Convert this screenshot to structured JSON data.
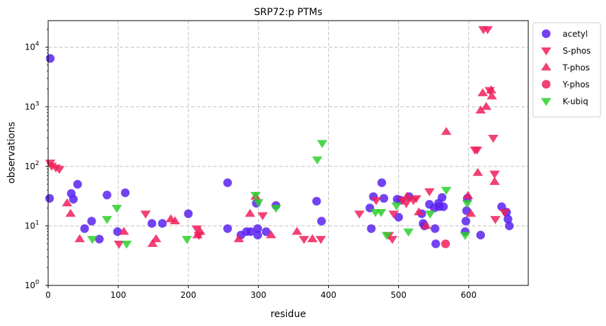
{
  "chart_data": {
    "type": "scatter",
    "title": "SRP72:p PTMs",
    "xlabel": "residue",
    "ylabel": "observations",
    "xlim": [
      0,
      685
    ],
    "ylim": [
      1,
      28000
    ],
    "yscale": "log",
    "grid": true,
    "legend_position": "outside-right-top",
    "x_ticks": [
      "0",
      "100",
      "200",
      "300",
      "400",
      "500",
      "600"
    ],
    "y_ticks": [
      "10^0",
      "10^1",
      "10^2",
      "10^3",
      "10^4"
    ],
    "series": [
      {
        "name": "acetyl",
        "marker": "circle",
        "color": "#5a22f0",
        "points": [
          [
            2,
            29
          ],
          [
            3,
            6500
          ],
          [
            33,
            35
          ],
          [
            36,
            28
          ],
          [
            42,
            50
          ],
          [
            52,
            9
          ],
          [
            62,
            12
          ],
          [
            73,
            6
          ],
          [
            84,
            33
          ],
          [
            99,
            8
          ],
          [
            110,
            36
          ],
          [
            148,
            11
          ],
          [
            163,
            11
          ],
          [
            200,
            16
          ],
          [
            256,
            53
          ],
          [
            256,
            9
          ],
          [
            275,
            7
          ],
          [
            283,
            8
          ],
          [
            289,
            8
          ],
          [
            297,
            24
          ],
          [
            299,
            9
          ],
          [
            299,
            7
          ],
          [
            311,
            8
          ],
          [
            325,
            22
          ],
          [
            383,
            26
          ],
          [
            390,
            12
          ],
          [
            459,
            20
          ],
          [
            461,
            9
          ],
          [
            464,
            31
          ],
          [
            476,
            53
          ],
          [
            479,
            29
          ],
          [
            498,
            28
          ],
          [
            500,
            14
          ],
          [
            503,
            27
          ],
          [
            515,
            31
          ],
          [
            533,
            16
          ],
          [
            535,
            11
          ],
          [
            537,
            10
          ],
          [
            544,
            23
          ],
          [
            551,
            20
          ],
          [
            552,
            9
          ],
          [
            553,
            5
          ],
          [
            557,
            24
          ],
          [
            558,
            21
          ],
          [
            562,
            30
          ],
          [
            564,
            21
          ],
          [
            595,
            8
          ],
          [
            596,
            12
          ],
          [
            597,
            18
          ],
          [
            598,
            29
          ],
          [
            617,
            7
          ],
          [
            647,
            21
          ],
          [
            654,
            17
          ],
          [
            656,
            13
          ],
          [
            658,
            10
          ]
        ]
      },
      {
        "name": "S-phos",
        "marker": "triangle-down",
        "color": "#f0205a",
        "points": [
          [
            3,
            115
          ],
          [
            5,
            102
          ],
          [
            11,
            95
          ],
          [
            16,
            90
          ],
          [
            101,
            5
          ],
          [
            139,
            16
          ],
          [
            212,
            9
          ],
          [
            215,
            7
          ],
          [
            306,
            15
          ],
          [
            365,
            6
          ],
          [
            389,
            6
          ],
          [
            444,
            16
          ],
          [
            468,
            27
          ],
          [
            486,
            7
          ],
          [
            491,
            6
          ],
          [
            493,
            16
          ],
          [
            506,
            27
          ],
          [
            511,
            24
          ],
          [
            521,
            27
          ],
          [
            525,
            29
          ],
          [
            544,
            38
          ],
          [
            609,
            190
          ],
          [
            612,
            190
          ],
          [
            621,
            20000
          ],
          [
            627,
            20000
          ],
          [
            630,
            1900
          ],
          [
            635,
            300
          ],
          [
            637,
            75
          ],
          [
            638,
            13
          ],
          [
            651,
            17
          ]
        ]
      },
      {
        "name": "T-phos",
        "marker": "triangle-up",
        "color": "#f0205a",
        "points": [
          [
            27,
            24
          ],
          [
            32,
            16
          ],
          [
            45,
            6
          ],
          [
            108,
            8
          ],
          [
            149,
            5
          ],
          [
            154,
            6
          ],
          [
            175,
            13
          ],
          [
            181,
            12
          ],
          [
            213,
            7
          ],
          [
            217,
            8
          ],
          [
            272,
            6
          ],
          [
            288,
            16
          ],
          [
            296,
            31
          ],
          [
            318,
            7
          ],
          [
            355,
            8
          ],
          [
            377,
            6
          ],
          [
            512,
            31
          ],
          [
            529,
            17
          ],
          [
            539,
            10
          ],
          [
            568,
            380
          ],
          [
            599,
            32
          ],
          [
            603,
            16
          ],
          [
            613,
            78
          ],
          [
            617,
            870
          ],
          [
            620,
            1700
          ],
          [
            625,
            1000
          ],
          [
            632,
            1900
          ],
          [
            633,
            1500
          ],
          [
            637,
            55
          ]
        ]
      },
      {
        "name": "Y-phos",
        "marker": "circle",
        "color": "#f0205a",
        "points": [
          [
            567,
            5
          ]
        ]
      },
      {
        "name": "K-ubiq",
        "marker": "triangle-down",
        "color": "#2bd02b",
        "points": [
          [
            63,
            6
          ],
          [
            84,
            13
          ],
          [
            98,
            20
          ],
          [
            112,
            5
          ],
          [
            198,
            6
          ],
          [
            296,
            33
          ],
          [
            300,
            25
          ],
          [
            325,
            20
          ],
          [
            384,
            130
          ],
          [
            391,
            245
          ],
          [
            467,
            17
          ],
          [
            475,
            17
          ],
          [
            483,
            7
          ],
          [
            497,
            22
          ],
          [
            514,
            8
          ],
          [
            545,
            16
          ],
          [
            568,
            40
          ],
          [
            595,
            7
          ],
          [
            598,
            24
          ]
        ]
      }
    ]
  }
}
